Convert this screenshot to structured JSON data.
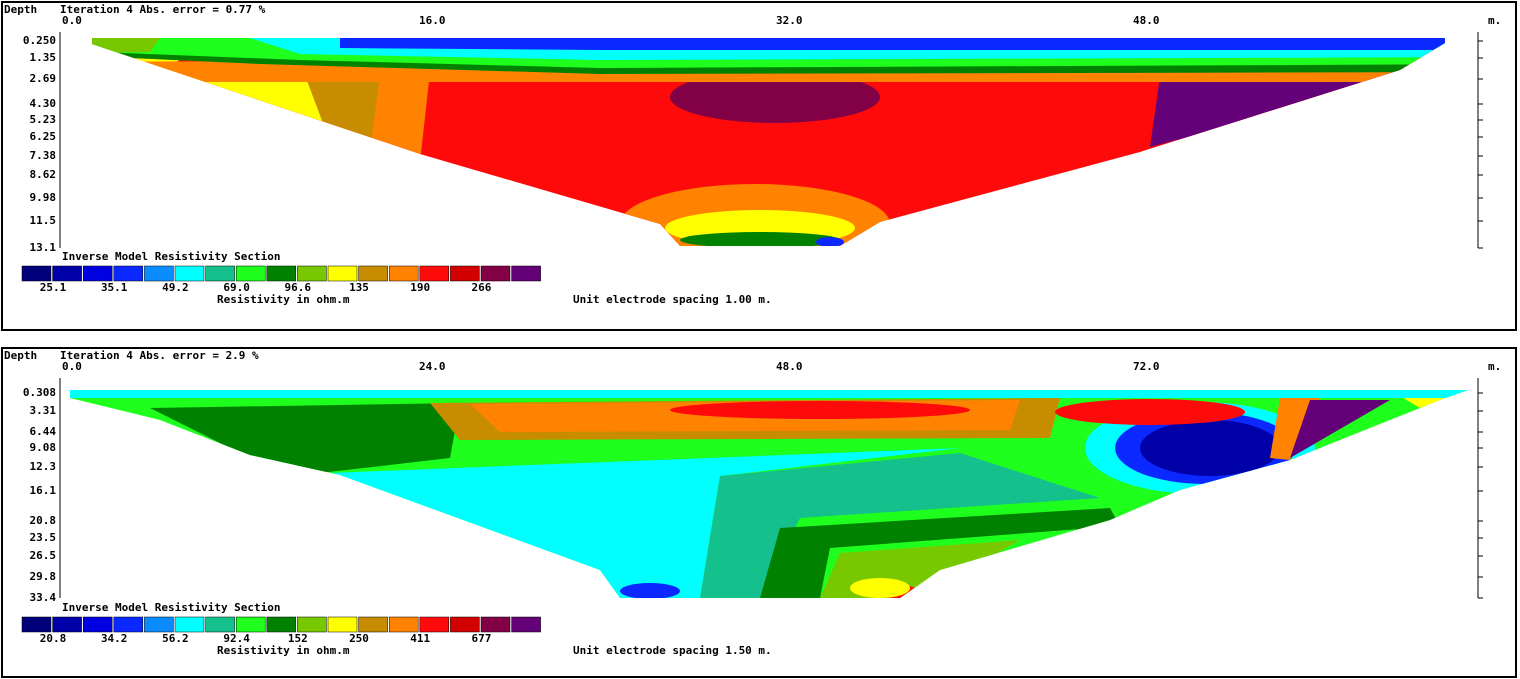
{
  "panels": [
    {
      "depth_label": "Depth",
      "title": "Iteration 4 Abs. error = 0.77 %",
      "x_ticks": [
        "0.0",
        "16.0",
        "32.0",
        "48.0"
      ],
      "x_unit": "m.",
      "depths": [
        "0.250",
        "1.35",
        "2.69",
        "4.30",
        "5.23",
        "6.25",
        "7.38",
        "8.62",
        "9.98",
        "11.5",
        "13.1"
      ],
      "legend_title": "Inverse Model Resistivity Section",
      "legend_values": [
        "25.1",
        "35.1",
        "49.2",
        "69.0",
        "96.6",
        "135",
        "190",
        "266"
      ],
      "resistivity_label": "Resistivity in ohm.m",
      "spacing": "Unit electrode spacing 1.00 m."
    },
    {
      "depth_label": "Depth",
      "title": "Iteration 4 Abs. error = 2.9 %",
      "x_ticks": [
        "0.0",
        "24.0",
        "48.0",
        "72.0"
      ],
      "x_unit": "m.",
      "depths": [
        "0.308",
        "3.31",
        "6.44",
        "9.08",
        "12.3",
        "16.1",
        "20.8",
        "23.5",
        "26.5",
        "29.8",
        "33.4"
      ],
      "legend_title": "Inverse Model Resistivity Section",
      "legend_values": [
        "20.8",
        "34.2",
        "56.2",
        "92.4",
        "152",
        "250",
        "411",
        "677"
      ],
      "resistivity_label": "Resistivity in ohm.m",
      "spacing": "Unit electrode spacing 1.50 m."
    }
  ],
  "legend_colors": [
    "#00007a",
    "#0000a8",
    "#0000e0",
    "#0a28ff",
    "#0a8cff",
    "#00ffff",
    "#14c08c",
    "#1eff1e",
    "#008200",
    "#78c800",
    "#ffff00",
    "#c88c00",
    "#ff8200",
    "#ff0a0a",
    "#d20000",
    "#820046",
    "#640078"
  ]
}
